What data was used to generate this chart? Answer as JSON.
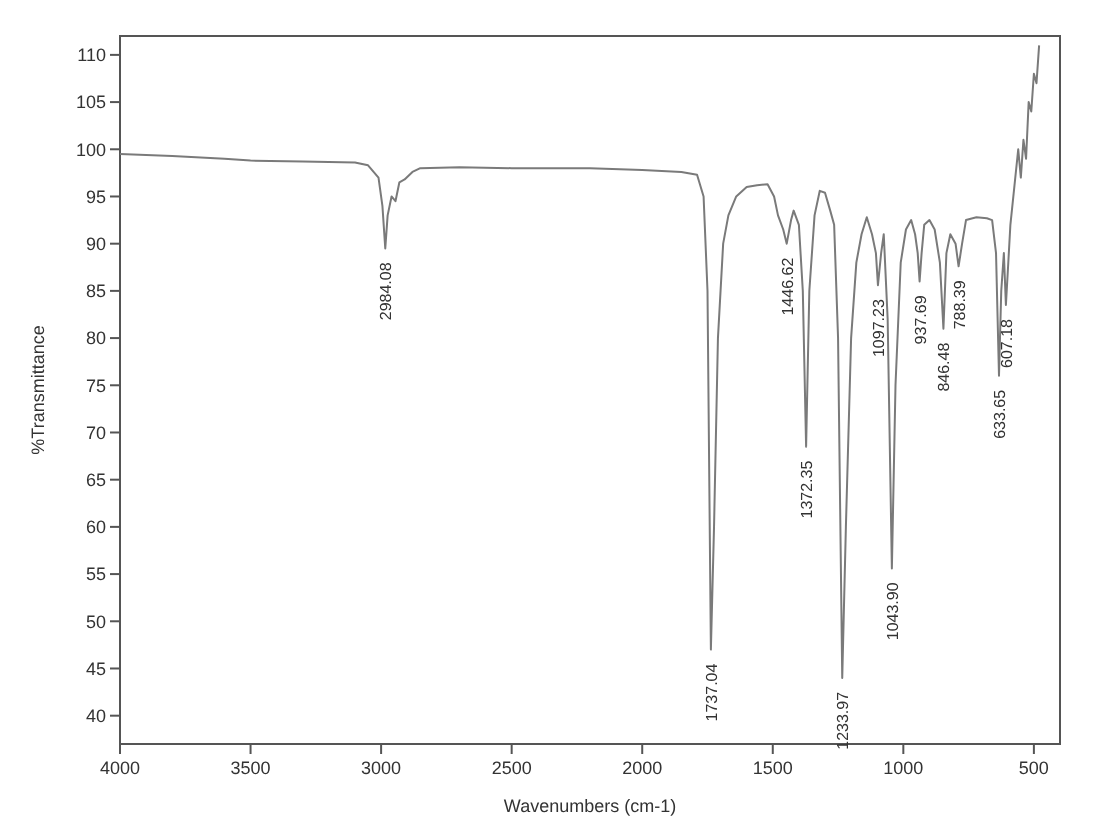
{
  "chart_data": {
    "type": "line",
    "xlabel": "Wavenumbers (cm-1)",
    "ylabel": "%Transmittance",
    "xlim": [
      4000,
      400
    ],
    "xticks": [
      4000,
      3500,
      3000,
      2500,
      2000,
      1500,
      1000,
      500
    ],
    "ylim": [
      37,
      112
    ],
    "yticks": [
      40,
      45,
      50,
      55,
      60,
      65,
      70,
      75,
      80,
      85,
      90,
      95,
      100,
      105,
      110
    ],
    "grid": false,
    "marker": "none",
    "line_style": "solid",
    "series": [
      {
        "color": "#7a7a7a",
        "x": [
          4000,
          3800,
          3600,
          3500,
          3300,
          3100,
          3050,
          3010,
          2995,
          2984.08,
          2975,
          2960,
          2945,
          2930,
          2910,
          2880,
          2850,
          2700,
          2500,
          2200,
          2000,
          1850,
          1790,
          1765,
          1750,
          1737.04,
          1725,
          1710,
          1690,
          1670,
          1640,
          1600,
          1560,
          1520,
          1495,
          1480,
          1460,
          1446.62,
          1430,
          1420,
          1400,
          1385,
          1372.35,
          1360,
          1340,
          1320,
          1300,
          1280,
          1265,
          1250,
          1233.97,
          1220,
          1200,
          1180,
          1160,
          1140,
          1120,
          1105,
          1097.23,
          1085,
          1075,
          1060,
          1043.9,
          1030,
          1010,
          990,
          970,
          955,
          945,
          937.69,
          930,
          920,
          900,
          880,
          860,
          846.48,
          835,
          820,
          800,
          788.39,
          775,
          760,
          720,
          680,
          660,
          645,
          633.65,
          625,
          615,
          607.18,
          598,
          590,
          575,
          560,
          550,
          540,
          530,
          520,
          510,
          500,
          490,
          480
        ],
        "values": [
          99.5,
          99.3,
          99.0,
          98.8,
          98.7,
          98.6,
          98.3,
          97,
          94,
          89.5,
          93,
          95,
          94.5,
          96.5,
          96.8,
          97.6,
          98,
          98.1,
          98,
          98,
          97.8,
          97.6,
          97.3,
          95,
          85,
          47,
          60,
          80,
          90,
          93,
          95,
          96,
          96.2,
          96.3,
          95,
          93,
          91.5,
          90,
          92.5,
          93.5,
          92,
          85,
          68.5,
          85,
          93,
          95.6,
          95.4,
          93.5,
          92,
          80,
          44,
          60,
          80,
          88,
          91,
          92.8,
          91,
          89,
          85.6,
          89,
          91,
          82,
          55.6,
          75,
          88,
          91.5,
          92.5,
          91,
          89,
          86,
          89,
          92,
          92.5,
          91.5,
          88,
          81,
          89,
          91,
          90,
          87.6,
          90,
          92.5,
          92.8,
          92.7,
          92.5,
          89,
          76,
          85,
          89,
          83.5,
          88,
          92,
          96,
          100,
          97,
          101,
          99,
          105,
          104,
          108,
          107,
          111
        ]
      }
    ],
    "annotations": [
      {
        "text": "2984.08",
        "x": 2984.08,
        "y": 89.5
      },
      {
        "text": "1737.04",
        "x": 1737.04,
        "y": 47
      },
      {
        "text": "1446.62",
        "x": 1446.62,
        "y": 90
      },
      {
        "text": "1372.35",
        "x": 1372.35,
        "y": 68.5
      },
      {
        "text": "1233.97",
        "x": 1233.97,
        "y": 44
      },
      {
        "text": "1097.23",
        "x": 1097.23,
        "y": 85.6
      },
      {
        "text": "1043.90",
        "x": 1043.9,
        "y": 55.6
      },
      {
        "text": "937.69",
        "x": 937.69,
        "y": 86
      },
      {
        "text": "846.48",
        "x": 846.48,
        "y": 81
      },
      {
        "text": "788.39",
        "x": 788.39,
        "y": 87.6
      },
      {
        "text": "633.65",
        "x": 633.65,
        "y": 76
      },
      {
        "text": "607.18",
        "x": 607.18,
        "y": 83.5
      }
    ]
  }
}
